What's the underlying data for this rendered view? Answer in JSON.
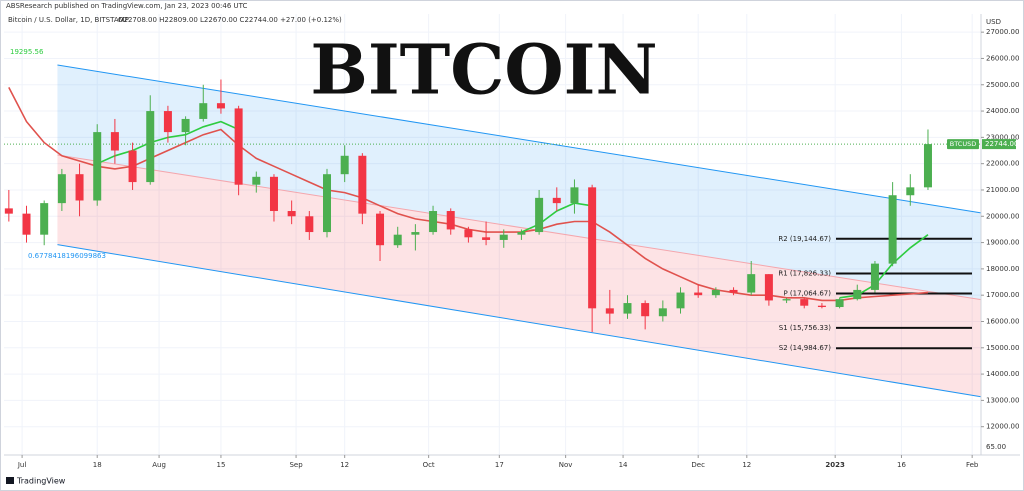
{
  "chart_data": {
    "type": "candlestick",
    "source": "ABSResearch published on TradingView.com, Jan 23, 2023 00:46 UTC",
    "subtitle": "Bitcoin / U.S. Dollar, 1D, BITSTAMP",
    "ohlc": "O22708.00 H22809.00 L22670.00 C22744.00 +27.00 (+0.12%)",
    "title": "BITCOIN",
    "y_axis_label": "USD",
    "footer": "TradingView",
    "annotations": [
      "19295.56",
      "0.6778418196099863",
      "65.00"
    ],
    "up_color": "#4caf50",
    "down_color": "#f23645",
    "grid": true,
    "xlim": [
      "2022-06-26",
      "2023-02-03"
    ],
    "ylim": [
      11000,
      27500
    ],
    "yticks": [
      {
        "value": 27000,
        "label": "27000.00"
      },
      {
        "value": 26000,
        "label": "26000.00"
      },
      {
        "value": 25000,
        "label": "25000.00"
      },
      {
        "value": 24000,
        "label": "24000.00"
      },
      {
        "value": 23000,
        "label": "23000.00"
      },
      {
        "value": 22000,
        "label": "22000.00"
      },
      {
        "value": 21000,
        "label": "21000.00"
      },
      {
        "value": 20000,
        "label": "20000.00"
      },
      {
        "value": 19000,
        "label": "19000.00"
      },
      {
        "value": 18000,
        "label": "18000.00"
      },
      {
        "value": 17000,
        "label": "17000.00"
      },
      {
        "value": 16000,
        "label": "16000.00"
      },
      {
        "value": 15000,
        "label": "15000.00"
      },
      {
        "value": 14000,
        "label": "14000.00"
      },
      {
        "value": 13000,
        "label": "13000.00"
      },
      {
        "value": 12000,
        "label": "12000.00"
      }
    ],
    "xticks": [
      {
        "value": "2022-07-01",
        "label": "Jul"
      },
      {
        "value": "2022-07-18",
        "label": "18"
      },
      {
        "value": "2022-08-01",
        "label": "Aug"
      },
      {
        "value": "2022-08-15",
        "label": "15"
      },
      {
        "value": "2022-09-01",
        "label": "Sep"
      },
      {
        "value": "2022-09-12",
        "label": "12"
      },
      {
        "value": "2022-10-01",
        "label": "Oct"
      },
      {
        "value": "2022-10-17",
        "label": "17"
      },
      {
        "value": "2022-11-01",
        "label": "Nov"
      },
      {
        "value": "2022-11-14",
        "label": "14"
      },
      {
        "value": "2022-12-01",
        "label": "Dec"
      },
      {
        "value": "2022-12-12",
        "label": "12"
      },
      {
        "value": "2023-01-01",
        "label": "2023"
      },
      {
        "value": "2023-01-16",
        "label": "16"
      },
      {
        "value": "2023-02-01",
        "label": "Feb"
      }
    ],
    "x": [
      "2022-06-28",
      "2022-07-02",
      "2022-07-06",
      "2022-07-10",
      "2022-07-14",
      "2022-07-18",
      "2022-07-22",
      "2022-07-26",
      "2022-07-30",
      "2022-08-03",
      "2022-08-07",
      "2022-08-11",
      "2022-08-15",
      "2022-08-19",
      "2022-08-23",
      "2022-08-27",
      "2022-08-31",
      "2022-09-04",
      "2022-09-08",
      "2022-09-12",
      "2022-09-16",
      "2022-09-20",
      "2022-09-24",
      "2022-09-28",
      "2022-10-02",
      "2022-10-06",
      "2022-10-10",
      "2022-10-14",
      "2022-10-18",
      "2022-10-22",
      "2022-10-26",
      "2022-10-30",
      "2022-11-03",
      "2022-11-07",
      "2022-11-11",
      "2022-11-15",
      "2022-11-19",
      "2022-11-23",
      "2022-11-27",
      "2022-12-01",
      "2022-12-05",
      "2022-12-09",
      "2022-12-13",
      "2022-12-17",
      "2022-12-21",
      "2022-12-25",
      "2022-12-29",
      "2023-01-02",
      "2023-01-06",
      "2023-01-10",
      "2023-01-14",
      "2023-01-18",
      "2023-01-22"
    ],
    "open": [
      20300,
      20100,
      19300,
      20500,
      21600,
      20600,
      23200,
      22500,
      21300,
      24000,
      23200,
      23700,
      24300,
      24100,
      21200,
      21500,
      20200,
      20000,
      19400,
      21600,
      22300,
      20100,
      18900,
      19300,
      19400,
      20200,
      19500,
      19200,
      19100,
      19300,
      19400,
      20700,
      20500,
      21100,
      16500,
      16300,
      16700,
      16200,
      16500,
      17100,
      17000,
      17200,
      17100,
      17800,
      16800,
      16850,
      16600,
      16550,
      16850,
      17200,
      18200,
      20800,
      21100
    ],
    "high": [
      21000,
      20400,
      20600,
      21800,
      22000,
      23500,
      23700,
      22800,
      24600,
      24200,
      23800,
      25000,
      25200,
      24200,
      21700,
      21600,
      20600,
      20200,
      21800,
      22700,
      22400,
      20200,
      19600,
      19700,
      20400,
      20300,
      19600,
      19800,
      19500,
      19500,
      21000,
      21100,
      21400,
      21200,
      17200,
      17000,
      16800,
      16800,
      17300,
      17400,
      17300,
      17300,
      18300,
      17800,
      16900,
      16900,
      16700,
      16900,
      17400,
      18300,
      21300,
      21600,
      23300
    ],
    "low": [
      19800,
      19000,
      18900,
      20200,
      20000,
      20400,
      22000,
      21000,
      21200,
      22800,
      22700,
      23600,
      23900,
      20800,
      20900,
      19800,
      19700,
      19100,
      19200,
      21300,
      19700,
      18300,
      18800,
      18700,
      19300,
      19300,
      19000,
      18900,
      18800,
      19100,
      19300,
      20200,
      20100,
      15600,
      15900,
      16100,
      15700,
      16000,
      16300,
      16900,
      16900,
      17000,
      17000,
      16600,
      16700,
      16500,
      16500,
      16500,
      16800,
      17100,
      18100,
      20400,
      21000
    ],
    "close": [
      20100,
      19300,
      20500,
      21600,
      20600,
      23200,
      22500,
      21300,
      24000,
      23200,
      23700,
      24300,
      24100,
      21200,
      21500,
      20200,
      20000,
      19400,
      21600,
      22300,
      20100,
      18900,
      19300,
      19400,
      20200,
      19500,
      19200,
      19100,
      19300,
      19400,
      20700,
      20500,
      21100,
      16500,
      16300,
      16700,
      16200,
      16500,
      17100,
      17000,
      17200,
      17100,
      17800,
      16800,
      16850,
      16600,
      16550,
      16850,
      17200,
      18200,
      20800,
      21100,
      22744
    ],
    "moving_averages": [
      {
        "color": "#e0524d",
        "values": [
          24900,
          23600,
          22800,
          22300,
          22100,
          21900,
          21800,
          21900,
          22200,
          22500,
          22800,
          23100,
          23300,
          22700,
          22200,
          21900,
          21600,
          21300,
          21000,
          20900,
          20700,
          20400,
          20100,
          19900,
          19800,
          19700,
          19500,
          19400,
          19400,
          19400,
          19500,
          19700,
          19800,
          19800,
          19400,
          18900,
          18400,
          18000,
          17700,
          17400,
          17200,
          17100,
          17000,
          17000,
          16900,
          16900,
          16800,
          16800,
          16900,
          16950,
          17000,
          17050,
          17100
        ]
      },
      {
        "color": "#2ecc40",
        "values": [
          null,
          null,
          null,
          null,
          null,
          22000,
          22300,
          22500,
          22800,
          23000,
          23100,
          23400,
          23600,
          23300,
          null,
          null,
          null,
          null,
          null,
          null,
          null,
          null,
          null,
          null,
          null,
          null,
          null,
          null,
          null,
          19400,
          19700,
          20200,
          20500,
          20400,
          null,
          null,
          null,
          null,
          null,
          null,
          null,
          null,
          null,
          null,
          null,
          null,
          null,
          16900,
          17000,
          17400,
          18200,
          18800,
          19300
        ]
      }
    ],
    "channel": {
      "x": [
        "2022-07-09",
        "2023-02-03"
      ],
      "upper": [
        25750,
        20130
      ],
      "middle": [
        22330,
        16830
      ],
      "lower": [
        18920,
        13140
      ]
    },
    "pivots": [
      {
        "label": "R2 (19,144.67)",
        "value": 19144.67
      },
      {
        "label": "R1 (17,826.33)",
        "value": 17826.33
      },
      {
        "label": "P (17,064.67)",
        "value": 17064.67
      },
      {
        "label": "S1 (15,756.33)",
        "value": 15756.33
      },
      {
        "label": "S2 (14,984.67)",
        "value": 14984.67
      }
    ],
    "price_tag": {
      "symbol": "BTCUSD",
      "value": 22744,
      "label": "22744.00"
    }
  }
}
